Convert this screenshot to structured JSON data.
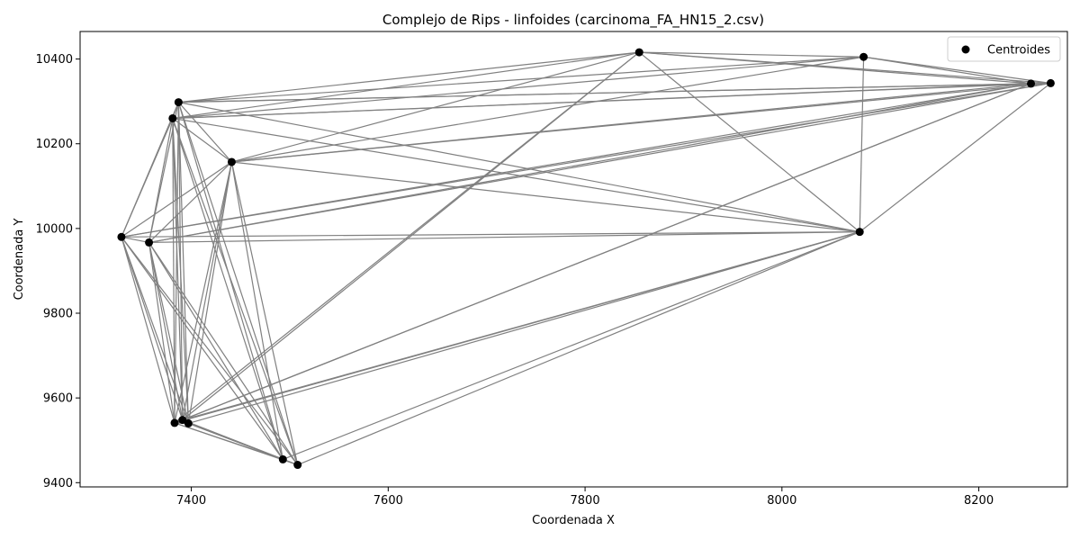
{
  "chart_data": {
    "type": "scatter",
    "title": "Complejo de Rips - linfoides (carcinoma_FA_HN15_2.csv)",
    "xlabel": "Coordenada X",
    "ylabel": "Coordenada Y",
    "xlim": [
      7287,
      8290
    ],
    "ylim": [
      9390,
      10465
    ],
    "xticks": [
      7400,
      7600,
      7800,
      8000,
      8200
    ],
    "yticks": [
      9400,
      9600,
      9800,
      10000,
      10200,
      10400
    ],
    "grid": false,
    "legend": {
      "position": "top-right",
      "entries": [
        "Centroides"
      ]
    },
    "colors": {
      "points": "#000000",
      "edges": "#808080"
    },
    "series": [
      {
        "name": "Centroides",
        "points": [
          {
            "x": 7329,
            "y": 9980
          },
          {
            "x": 7357,
            "y": 9967
          },
          {
            "x": 7381,
            "y": 10260
          },
          {
            "x": 7387,
            "y": 10298
          },
          {
            "x": 7383,
            "y": 9541
          },
          {
            "x": 7391,
            "y": 9548
          },
          {
            "x": 7397,
            "y": 9540
          },
          {
            "x": 7441,
            "y": 10157
          },
          {
            "x": 7493,
            "y": 9455
          },
          {
            "x": 7508,
            "y": 9442
          },
          {
            "x": 7855,
            "y": 10416
          },
          {
            "x": 8079,
            "y": 9992
          },
          {
            "x": 8083,
            "y": 10405
          },
          {
            "x": 8253,
            "y": 10342
          },
          {
            "x": 8273,
            "y": 10343
          }
        ]
      }
    ],
    "edges": [
      [
        0,
        1
      ],
      [
        0,
        2
      ],
      [
        0,
        3
      ],
      [
        0,
        4
      ],
      [
        0,
        5
      ],
      [
        0,
        6
      ],
      [
        0,
        7
      ],
      [
        0,
        8
      ],
      [
        0,
        9
      ],
      [
        0,
        11
      ],
      [
        0,
        13
      ],
      [
        0,
        14
      ],
      [
        1,
        2
      ],
      [
        1,
        3
      ],
      [
        1,
        4
      ],
      [
        1,
        5
      ],
      [
        1,
        6
      ],
      [
        1,
        7
      ],
      [
        1,
        8
      ],
      [
        1,
        9
      ],
      [
        1,
        11
      ],
      [
        1,
        13
      ],
      [
        1,
        14
      ],
      [
        2,
        3
      ],
      [
        2,
        4
      ],
      [
        2,
        5
      ],
      [
        2,
        6
      ],
      [
        2,
        7
      ],
      [
        2,
        8
      ],
      [
        2,
        9
      ],
      [
        2,
        10
      ],
      [
        2,
        11
      ],
      [
        2,
        12
      ],
      [
        2,
        13
      ],
      [
        2,
        14
      ],
      [
        3,
        4
      ],
      [
        3,
        5
      ],
      [
        3,
        6
      ],
      [
        3,
        7
      ],
      [
        3,
        8
      ],
      [
        3,
        9
      ],
      [
        3,
        10
      ],
      [
        3,
        11
      ],
      [
        3,
        12
      ],
      [
        3,
        13
      ],
      [
        3,
        14
      ],
      [
        4,
        5
      ],
      [
        4,
        6
      ],
      [
        4,
        7
      ],
      [
        4,
        8
      ],
      [
        4,
        9
      ],
      [
        4,
        10
      ],
      [
        4,
        11
      ],
      [
        4,
        13
      ],
      [
        5,
        6
      ],
      [
        5,
        7
      ],
      [
        5,
        8
      ],
      [
        5,
        9
      ],
      [
        5,
        10
      ],
      [
        5,
        11
      ],
      [
        5,
        13
      ],
      [
        6,
        7
      ],
      [
        6,
        8
      ],
      [
        6,
        9
      ],
      [
        6,
        11
      ],
      [
        7,
        8
      ],
      [
        7,
        9
      ],
      [
        7,
        10
      ],
      [
        7,
        11
      ],
      [
        7,
        12
      ],
      [
        7,
        13
      ],
      [
        7,
        14
      ],
      [
        8,
        9
      ],
      [
        8,
        11
      ],
      [
        9,
        11
      ],
      [
        10,
        11
      ],
      [
        10,
        12
      ],
      [
        10,
        13
      ],
      [
        10,
        14
      ],
      [
        11,
        12
      ],
      [
        11,
        14
      ],
      [
        12,
        13
      ],
      [
        12,
        14
      ],
      [
        13,
        14
      ]
    ]
  }
}
